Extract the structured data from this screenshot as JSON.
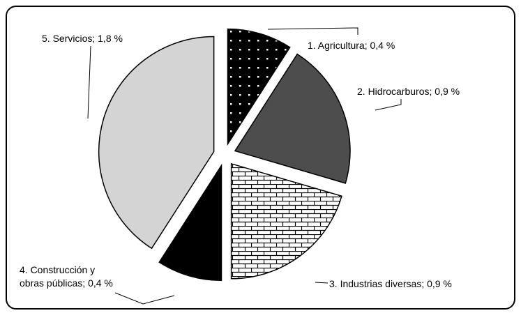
{
  "chart_data": {
    "type": "pie",
    "categories": [
      "1. Agricultura",
      "2. Hidrocarburos",
      "3. Industrias diversas",
      "4. Construcción y obras públicas",
      "5. Servicios"
    ],
    "values": [
      0.4,
      0.9,
      0.9,
      0.4,
      1.8
    ],
    "value_labels": [
      "0,4 %",
      "0,9 %",
      "0,9 %",
      "0,4 %",
      "1,8 %"
    ],
    "label_separator": "; ",
    "colors": [
      "#000000",
      "#4d4d4d",
      "#ffffff",
      "#000000",
      "#d4d4d4"
    ],
    "patterns": [
      "dots",
      "solid",
      "brick",
      "solid",
      "solid"
    ]
  }
}
